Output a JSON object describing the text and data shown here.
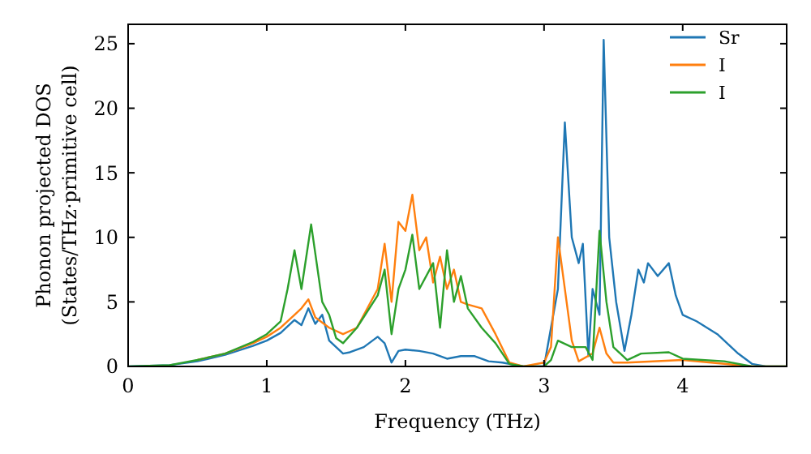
{
  "chart_data": {
    "type": "line",
    "xlabel": "Frequency (THz)",
    "ylabel": "Phonon projected DOS\n(States/THz·primitive cell)",
    "xlim": [
      0,
      4.75
    ],
    "ylim": [
      0,
      26.5
    ],
    "xticks": [
      0,
      1,
      2,
      3,
      4
    ],
    "yticks": [
      0,
      5,
      10,
      15,
      20,
      25
    ],
    "legend": "top right",
    "grid": false,
    "series": [
      {
        "name": "Sr",
        "color": "#1f77b4",
        "x": [
          0,
          0.3,
          0.5,
          0.7,
          0.9,
          1.0,
          1.1,
          1.2,
          1.25,
          1.3,
          1.35,
          1.4,
          1.45,
          1.5,
          1.55,
          1.6,
          1.7,
          1.8,
          1.85,
          1.9,
          1.95,
          2.0,
          2.1,
          2.2,
          2.3,
          2.4,
          2.5,
          2.6,
          2.7,
          2.85,
          3.0,
          3.05,
          3.1,
          3.15,
          3.2,
          3.25,
          3.28,
          3.32,
          3.35,
          3.4,
          3.43,
          3.47,
          3.52,
          3.58,
          3.63,
          3.68,
          3.72,
          3.75,
          3.82,
          3.9,
          3.95,
          4.0,
          4.1,
          4.25,
          4.4,
          4.5,
          4.6,
          4.75
        ],
        "values": [
          0,
          0.1,
          0.4,
          0.9,
          1.6,
          2.0,
          2.6,
          3.6,
          3.2,
          4.5,
          3.3,
          4.0,
          2.0,
          1.5,
          1.0,
          1.1,
          1.5,
          2.3,
          1.8,
          0.3,
          1.2,
          1.3,
          1.2,
          1.0,
          0.6,
          0.8,
          0.8,
          0.4,
          0.3,
          0,
          0,
          3,
          6,
          18.9,
          10,
          8,
          9.5,
          0.8,
          6,
          4,
          25.3,
          10,
          5,
          1.2,
          4,
          7.5,
          6.5,
          8,
          7.0,
          8,
          5.5,
          4,
          3.5,
          2.5,
          1,
          0.2,
          0,
          0
        ]
      },
      {
        "name": "I",
        "color": "#ff7f0e",
        "x": [
          0.5,
          0.7,
          0.9,
          1.0,
          1.1,
          1.2,
          1.25,
          1.3,
          1.35,
          1.45,
          1.55,
          1.65,
          1.8,
          1.85,
          1.9,
          1.95,
          2.0,
          2.05,
          2.1,
          2.15,
          2.2,
          2.25,
          2.3,
          2.35,
          2.4,
          2.45,
          2.55,
          2.65,
          2.75,
          2.85,
          3.0,
          3.05,
          3.1,
          3.15,
          3.2,
          3.25,
          3.35,
          3.4,
          3.45,
          3.5,
          3.6,
          4.0,
          4.3,
          4.5,
          4.75
        ],
        "values": [
          0.5,
          1.0,
          1.8,
          2.3,
          3.0,
          4.0,
          4.5,
          5.2,
          3.8,
          3.0,
          2.5,
          3.0,
          6.0,
          9.5,
          5.0,
          11.2,
          10.5,
          13.3,
          9.0,
          10.0,
          6.5,
          8.5,
          6.0,
          7.5,
          5.0,
          4.8,
          4.5,
          2.5,
          0.3,
          0,
          0.3,
          1.5,
          10,
          6,
          2,
          0.4,
          1,
          3,
          1,
          0.3,
          0.3,
          0.5,
          0.2,
          0,
          0
        ]
      },
      {
        "name": "I",
        "color": "#2ca02c",
        "x": [
          0,
          0.3,
          0.5,
          0.7,
          0.9,
          1.0,
          1.1,
          1.15,
          1.2,
          1.25,
          1.32,
          1.4,
          1.45,
          1.5,
          1.55,
          1.65,
          1.8,
          1.85,
          1.9,
          1.95,
          2.0,
          2.05,
          2.1,
          2.2,
          2.25,
          2.3,
          2.35,
          2.4,
          2.45,
          2.55,
          2.65,
          2.75,
          2.85,
          3.0,
          3.05,
          3.1,
          3.2,
          3.3,
          3.35,
          3.4,
          3.45,
          3.5,
          3.6,
          3.7,
          3.9,
          4.0,
          4.3,
          4.5,
          4.75
        ],
        "values": [
          0,
          0.1,
          0.5,
          1.0,
          1.9,
          2.5,
          3.5,
          6.0,
          9.0,
          6.0,
          11.0,
          5.0,
          4.0,
          2.2,
          1.8,
          3.0,
          5.5,
          7.5,
          2.5,
          6.0,
          7.5,
          10.2,
          6.0,
          8.0,
          3.0,
          9.0,
          5.0,
          7.0,
          4.5,
          3.0,
          1.8,
          0.2,
          0,
          0,
          0.5,
          2,
          1.5,
          1.5,
          0.5,
          10.5,
          5,
          1.5,
          0.5,
          1,
          1.1,
          0.6,
          0.4,
          0,
          0
        ]
      }
    ]
  }
}
